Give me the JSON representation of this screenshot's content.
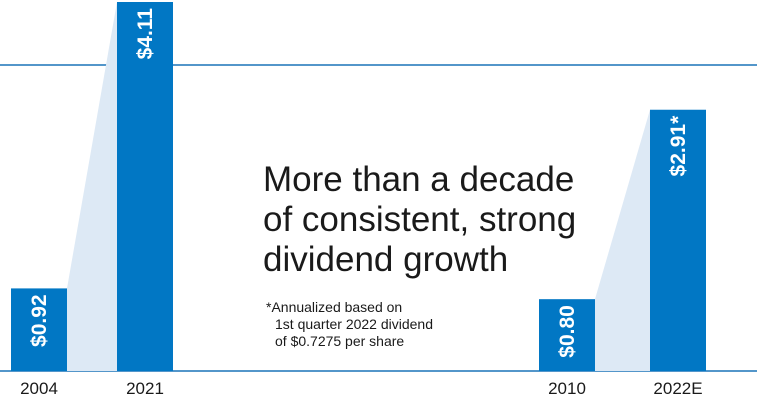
{
  "colors": {
    "bar": "#0177c4",
    "connector": "#dde9f5",
    "axis": "#1a74b8",
    "text": "#1a1a1a",
    "bar_label": "#ffffff"
  },
  "headline": [
    "More than a decade",
    "of consistent, strong",
    "dividend growth"
  ],
  "footnote": [
    "*Annualized based on",
    "1st quarter 2022 dividend",
    "of $0.7275 per share"
  ],
  "chart_data": [
    {
      "type": "bar",
      "categories": [
        "2004",
        "2021"
      ],
      "values": [
        0.92,
        4.11
      ],
      "data_labels": [
        "$0.92",
        "$4.11"
      ],
      "title": "",
      "xlabel": "",
      "ylabel": "",
      "ylim": [
        0,
        4.11
      ],
      "grid": false
    },
    {
      "type": "bar",
      "categories": [
        "2010",
        "2022E"
      ],
      "values": [
        0.8,
        2.91
      ],
      "data_labels": [
        "$0.80",
        "$2.91*"
      ],
      "title": "",
      "xlabel": "",
      "ylabel": "",
      "ylim": [
        0,
        4.11
      ],
      "grid": false
    }
  ]
}
